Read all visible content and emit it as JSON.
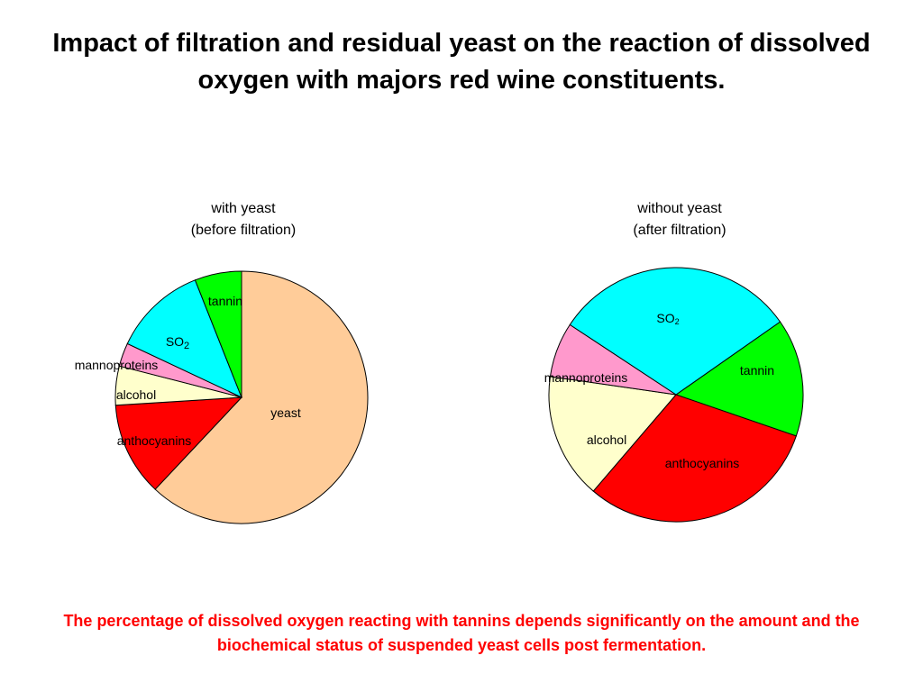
{
  "title": "Impact of filtration and residual yeast on the reaction of dissolved oxygen with majors red wine constituents.",
  "footnote": {
    "text": "The percentage of dissolved oxygen reacting with tannins depends significantly on the amount and the biochemical status of suspended yeast cells post fermentation.",
    "color": "#ff0000"
  },
  "colors": {
    "yeast": "#ffcc99",
    "anthocyanins": "#ff0000",
    "alcohol": "#ffffcc",
    "mannoproteins": "#ff99cc",
    "SO2": "#00ffff",
    "tannin": "#00ff00"
  },
  "chart_data": [
    {
      "type": "pie",
      "title_line1": "with yeast",
      "title_line2": "(before filtration)",
      "slices": [
        {
          "key": "yeast",
          "label": "yeast",
          "value": 62
        },
        {
          "key": "anthocyanins",
          "label": "anthocyanins",
          "value": 12
        },
        {
          "key": "alcohol",
          "label": "alcohol",
          "value": 5
        },
        {
          "key": "mannoproteins",
          "label": "mannoproteins",
          "value": 3
        },
        {
          "key": "SO2",
          "label": "SO",
          "label_sub": "2",
          "value": 12
        },
        {
          "key": "tannin",
          "label": "tannin",
          "value": 6
        }
      ]
    },
    {
      "type": "pie",
      "title_line1": "without yeast",
      "title_line2": "(after filtration)",
      "slices": [
        {
          "key": "tannin",
          "label": "tannin",
          "value": 15
        },
        {
          "key": "anthocyanins",
          "label": "anthocyanins",
          "value": 31
        },
        {
          "key": "alcohol",
          "label": "alcohol",
          "value": 16
        },
        {
          "key": "mannoproteins",
          "label": "mannoproteins",
          "value": 7
        },
        {
          "key": "SO2",
          "label": "SO",
          "label_sub": "2",
          "value": 31
        }
      ]
    }
  ]
}
